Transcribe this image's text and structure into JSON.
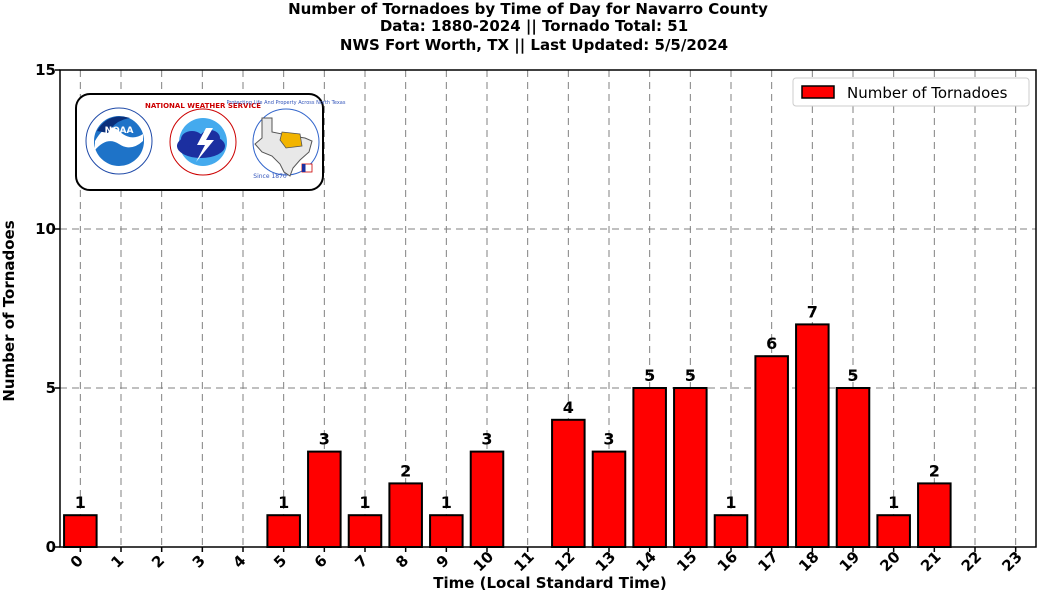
{
  "titles": [
    "Number of Tornadoes by Time of Day for Navarro County",
    "Data: 1880-2024 || Tornado Total: 51",
    "NWS Fort Worth, TX || Last Updated: 5/5/2024"
  ],
  "logos": {
    "noaa_text": "NOAA",
    "nws_text": "NATIONAL WEATHER SERVICE",
    "fwd_text": "Protecting Life And Property Across North Texas",
    "since_text": "Since 1870"
  },
  "colors": {
    "bar": "#ff0000",
    "grid": "#808080"
  },
  "chart_data": {
    "type": "bar",
    "title": "Number of Tornadoes by Time of Day for Navarro County",
    "xlabel": "Time (Local Standard Time)",
    "ylabel": "Number of Tornadoes",
    "categories": [
      "0",
      "1",
      "2",
      "3",
      "4",
      "5",
      "6",
      "7",
      "8",
      "9",
      "10",
      "11",
      "12",
      "13",
      "14",
      "15",
      "16",
      "17",
      "18",
      "19",
      "20",
      "21",
      "22",
      "23"
    ],
    "series": [
      {
        "name": "Number of Tornadoes",
        "values": [
          1,
          0,
          0,
          0,
          0,
          1,
          3,
          1,
          2,
          1,
          3,
          0,
          4,
          3,
          5,
          5,
          1,
          6,
          7,
          5,
          1,
          2,
          0,
          0
        ]
      }
    ],
    "ylim": [
      0,
      15
    ],
    "yticks": [
      "0",
      "5",
      "10",
      "15"
    ],
    "grid": true,
    "legend_position": "top-right"
  }
}
